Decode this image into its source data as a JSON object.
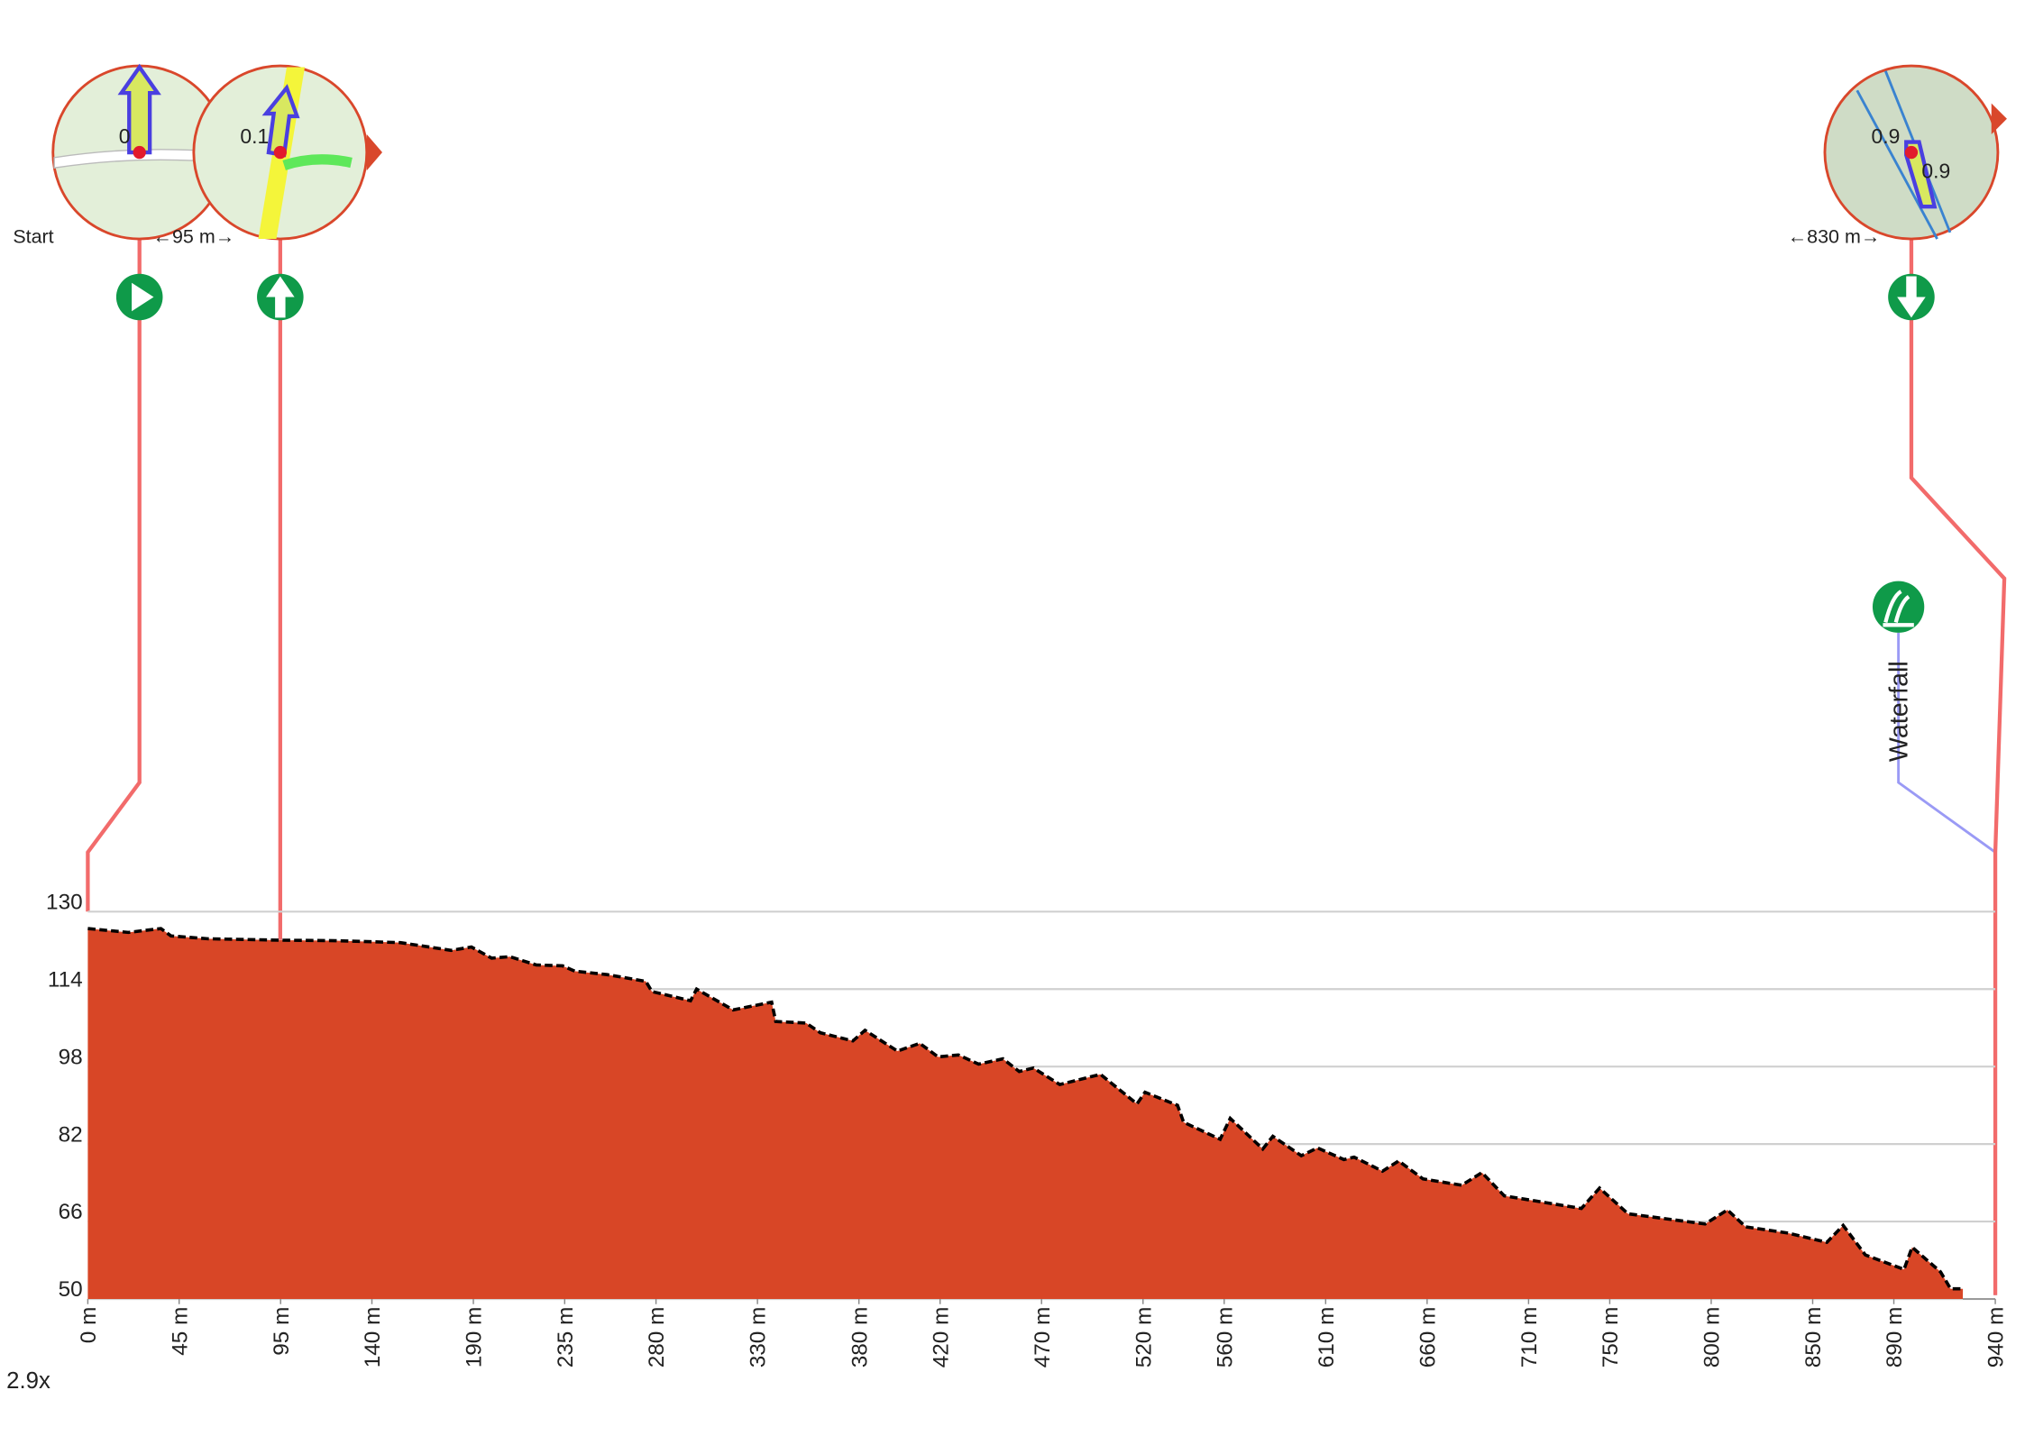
{
  "chart_data": {
    "type": "area",
    "x": [
      0,
      20,
      36,
      41,
      59,
      94,
      122,
      154,
      179,
      189,
      199,
      208,
      221,
      234,
      240,
      256,
      275,
      278,
      297,
      300,
      318,
      337,
      339,
      354,
      361,
      377,
      383,
      399,
      410,
      419,
      429,
      439,
      451,
      459,
      466,
      479,
      499,
      517,
      521,
      537,
      540,
      558,
      563,
      579,
      584,
      598,
      606,
      619,
      624,
      638,
      646,
      658,
      677,
      687,
      698,
      736,
      745,
      759,
      797,
      808,
      817,
      838,
      857,
      865,
      876,
      895,
      899,
      913,
      918,
      924
    ],
    "values": [
      126.5,
      125.7,
      126.5,
      125,
      124.4,
      124.1,
      124,
      123.6,
      122,
      122.7,
      120.4,
      120.7,
      119,
      118.8,
      117.7,
      117,
      115.6,
      113.5,
      111.6,
      114,
      109.7,
      111.3,
      107.3,
      107,
      105,
      103.3,
      105.5,
      101.2,
      102.8,
      100,
      100.4,
      98.5,
      99.6,
      97,
      97.7,
      94.3,
      96.4,
      90.3,
      92.7,
      90,
      86.5,
      83,
      87.3,
      81,
      83.6,
      79.6,
      81.2,
      78.8,
      79.3,
      76.4,
      78.5,
      74.8,
      73.5,
      76.1,
      71.3,
      68.7,
      72.9,
      67.6,
      65.5,
      68.4,
      64.9,
      63.6,
      61.7,
      65.2,
      59.1,
      56.1,
      60.7,
      55.6,
      52.1,
      52.1
    ],
    "color": "#d84626",
    "xlim": [
      0,
      940
    ],
    "ylim": [
      50,
      130
    ],
    "xticks": [
      {
        "value": 0,
        "label": "0 m"
      },
      {
        "value": 45,
        "label": "45 m"
      },
      {
        "value": 95,
        "label": "95 m"
      },
      {
        "value": 140,
        "label": "140 m"
      },
      {
        "value": 190,
        "label": "190 m"
      },
      {
        "value": 235,
        "label": "235 m"
      },
      {
        "value": 280,
        "label": "280 m"
      },
      {
        "value": 330,
        "label": "330 m"
      },
      {
        "value": 380,
        "label": "380 m"
      },
      {
        "value": 420,
        "label": "420 m"
      },
      {
        "value": 470,
        "label": "470 m"
      },
      {
        "value": 520,
        "label": "520 m"
      },
      {
        "value": 560,
        "label": "560 m"
      },
      {
        "value": 610,
        "label": "610 m"
      },
      {
        "value": 660,
        "label": "660 m"
      },
      {
        "value": 710,
        "label": "710 m"
      },
      {
        "value": 750,
        "label": "750 m"
      },
      {
        "value": 800,
        "label": "800 m"
      },
      {
        "value": 850,
        "label": "850 m"
      },
      {
        "value": 890,
        "label": "890 m"
      },
      {
        "value": 940,
        "label": "940 m"
      }
    ],
    "yticks": [
      50,
      66,
      82,
      98,
      114,
      130
    ],
    "grid": true,
    "zoom": "2.9x",
    "markers": [
      "Start",
      "←95 m→",
      "←830 m→"
    ],
    "thumbnail_labels": [
      "0",
      "0.1",
      "0.9",
      "0.9"
    ],
    "poi": "Waterfall"
  }
}
